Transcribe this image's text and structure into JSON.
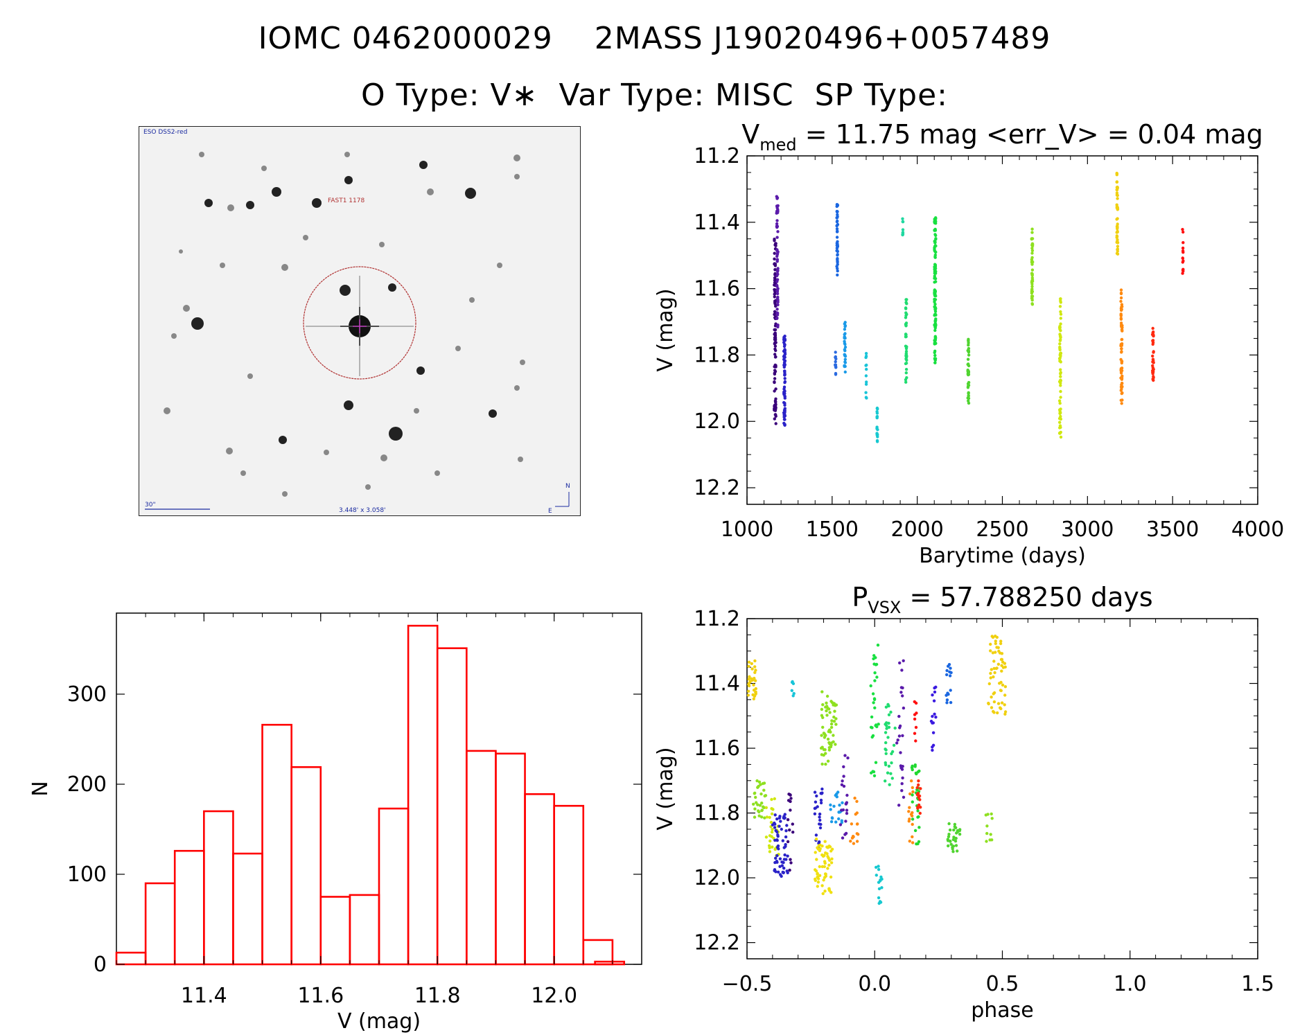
{
  "header": {
    "line1": "IOMC 0462000029    2MASS J19020496+0057489",
    "line2": "O Type: V∗  Var Type: MISC  SP Type:"
  },
  "finder": {
    "survey_label": "ESO DSS2-red",
    "target_label": "FAST1 1178",
    "scale_label": "30\"",
    "fov_label": "3.448' x 3.058'",
    "north_label": "N",
    "east_label": "E"
  },
  "colors": {
    "histogram": "#ff0000",
    "circle": "#b03030",
    "finder_text_blue": "#1a2aa0"
  },
  "chart_data": [
    {
      "id": "light_curve",
      "type": "scatter",
      "title_main": "V",
      "title_sub": "med",
      "title_rest": " = 11.75 mag <err_V> = 0.04 mag",
      "xlabel": "Barytime (days)",
      "ylabel": "V (mag)",
      "xlim": [
        1000,
        4000
      ],
      "ylim": [
        12.25,
        11.2
      ],
      "xticks": [
        1000,
        1500,
        2000,
        2500,
        3000,
        3500,
        4000
      ],
      "yticks": [
        11.2,
        11.4,
        11.6,
        11.8,
        12.0,
        12.2
      ],
      "ytick_labels": [
        "11.2",
        "11.4",
        "11.6",
        "11.8",
        "12.0",
        "12.2"
      ],
      "series": [
        {
          "x": 1165,
          "w": 10,
          "ymin": 11.45,
          "ymax": 12.01,
          "color": "#3a007a",
          "n": 110
        },
        {
          "x": 1178,
          "w": 8,
          "ymin": 11.32,
          "ymax": 11.72,
          "color": "#5a1aaa",
          "n": 60
        },
        {
          "x": 1220,
          "w": 8,
          "ymin": 11.74,
          "ymax": 12.02,
          "color": "#2a22c8",
          "n": 70
        },
        {
          "x": 1530,
          "w": 6,
          "ymin": 11.34,
          "ymax": 11.57,
          "color": "#1a66e0",
          "n": 45
        },
        {
          "x": 1520,
          "w": 5,
          "ymin": 11.79,
          "ymax": 11.86,
          "color": "#2a6ae0",
          "n": 12
        },
        {
          "x": 1575,
          "w": 6,
          "ymin": 11.7,
          "ymax": 11.86,
          "color": "#1a9ae8",
          "n": 30
        },
        {
          "x": 1700,
          "w": 4,
          "ymin": 11.78,
          "ymax": 11.93,
          "color": "#18c4d8",
          "n": 12
        },
        {
          "x": 1765,
          "w": 4,
          "ymin": 11.96,
          "ymax": 12.08,
          "color": "#16c8d0",
          "n": 18
        },
        {
          "x": 1915,
          "w": 4,
          "ymin": 11.37,
          "ymax": 11.44,
          "color": "#20d8a0",
          "n": 10
        },
        {
          "x": 1935,
          "w": 6,
          "ymin": 11.63,
          "ymax": 11.89,
          "color": "#20dc70",
          "n": 40
        },
        {
          "x": 2105,
          "w": 8,
          "ymin": 11.38,
          "ymax": 11.83,
          "color": "#18e040",
          "n": 120
        },
        {
          "x": 2300,
          "w": 6,
          "ymin": 11.75,
          "ymax": 11.95,
          "color": "#50d430",
          "n": 40
        },
        {
          "x": 2675,
          "w": 6,
          "ymin": 11.42,
          "ymax": 11.65,
          "color": "#8ee020",
          "n": 45
        },
        {
          "x": 2840,
          "w": 8,
          "ymin": 11.63,
          "ymax": 12.05,
          "color": "#d0e810",
          "n": 70
        },
        {
          "x": 3175,
          "w": 6,
          "ymin": 11.25,
          "ymax": 11.5,
          "color": "#f0d010",
          "n": 50
        },
        {
          "x": 3200,
          "w": 8,
          "ymin": 11.6,
          "ymax": 11.95,
          "color": "#ff8a10",
          "n": 60
        },
        {
          "x": 3385,
          "w": 8,
          "ymin": 11.7,
          "ymax": 11.88,
          "color": "#ff2a10",
          "n": 35
        },
        {
          "x": 3560,
          "w": 4,
          "ymin": 11.41,
          "ymax": 11.56,
          "color": "#ff1010",
          "n": 14
        }
      ]
    },
    {
      "id": "phased",
      "type": "scatter",
      "title_main": "P",
      "title_sub": "VSX",
      "title_rest": " = 57.788250 days",
      "xlabel": "phase",
      "ylabel": "V (mag)",
      "xlim": [
        -0.5,
        1.5
      ],
      "ylim": [
        12.25,
        11.2
      ],
      "xticks": [
        -0.5,
        0.0,
        0.5,
        1.0,
        1.5
      ],
      "xtick_labels": [
        "−0.5",
        "0.0",
        "0.5",
        "1.0",
        "1.5"
      ],
      "yticks": [
        11.2,
        11.4,
        11.6,
        11.8,
        12.0,
        12.2
      ],
      "ytick_labels": [
        "11.2",
        "11.4",
        "11.6",
        "11.8",
        "12.0",
        "12.2"
      ],
      "series": [
        {
          "x": -0.48,
          "w": 0.03,
          "ymin": 11.33,
          "ymax": 11.45,
          "color": "#f0d010",
          "n": 30
        },
        {
          "x": -0.45,
          "w": 0.05,
          "ymin": 11.7,
          "ymax": 11.82,
          "color": "#8ee020",
          "n": 30
        },
        {
          "x": -0.4,
          "w": 0.05,
          "ymin": 11.75,
          "ymax": 11.95,
          "color": "#d0e810",
          "n": 30
        },
        {
          "x": -0.37,
          "w": 0.06,
          "ymin": 11.8,
          "ymax": 12.0,
          "color": "#2a22c8",
          "n": 60
        },
        {
          "x": -0.33,
          "w": 0.02,
          "ymin": 11.72,
          "ymax": 12.01,
          "color": "#3a007a",
          "n": 15
        },
        {
          "x": -0.32,
          "w": 0.01,
          "ymin": 11.39,
          "ymax": 11.44,
          "color": "#18c4d8",
          "n": 6
        },
        {
          "x": -0.22,
          "w": 0.03,
          "ymin": 11.72,
          "ymax": 11.92,
          "color": "#2a22c8",
          "n": 25
        },
        {
          "x": -0.2,
          "w": 0.07,
          "ymin": 11.88,
          "ymax": 12.05,
          "color": "#f0e010",
          "n": 60
        },
        {
          "x": -0.18,
          "w": 0.06,
          "ymin": 11.42,
          "ymax": 11.65,
          "color": "#8ee020",
          "n": 60
        },
        {
          "x": -0.15,
          "w": 0.05,
          "ymin": 11.73,
          "ymax": 11.83,
          "color": "#1a9ae8",
          "n": 20
        },
        {
          "x": -0.12,
          "w": 0.03,
          "ymin": 11.6,
          "ymax": 11.88,
          "color": "#5a1aaa",
          "n": 20
        },
        {
          "x": -0.08,
          "w": 0.03,
          "ymin": 11.75,
          "ymax": 11.9,
          "color": "#ff8a10",
          "n": 15
        },
        {
          "x": 0.0,
          "w": 0.03,
          "ymin": 11.28,
          "ymax": 11.72,
          "color": "#18e040",
          "n": 30
        },
        {
          "x": 0.02,
          "w": 0.03,
          "ymin": 11.96,
          "ymax": 12.08,
          "color": "#16c8d0",
          "n": 15
        },
        {
          "x": 0.06,
          "w": 0.04,
          "ymin": 11.45,
          "ymax": 11.72,
          "color": "#20dc70",
          "n": 30
        },
        {
          "x": 0.1,
          "w": 0.03,
          "ymin": 11.33,
          "ymax": 11.8,
          "color": "#5a1aaa",
          "n": 25
        },
        {
          "x": 0.14,
          "w": 0.02,
          "ymin": 11.7,
          "ymax": 11.9,
          "color": "#ff8a10",
          "n": 15
        },
        {
          "x": 0.16,
          "w": 0.03,
          "ymin": 11.65,
          "ymax": 11.9,
          "color": "#20d830",
          "n": 30
        },
        {
          "x": 0.16,
          "w": 0.01,
          "ymin": 11.45,
          "ymax": 11.6,
          "color": "#ff1010",
          "n": 8
        },
        {
          "x": 0.17,
          "w": 0.02,
          "ymin": 11.7,
          "ymax": 11.82,
          "color": "#ff2a10",
          "n": 15
        },
        {
          "x": 0.23,
          "w": 0.02,
          "ymin": 11.4,
          "ymax": 11.62,
          "color": "#3a1ae0",
          "n": 15
        },
        {
          "x": 0.29,
          "w": 0.02,
          "ymin": 11.34,
          "ymax": 11.46,
          "color": "#1a66e0",
          "n": 15
        },
        {
          "x": 0.31,
          "w": 0.05,
          "ymin": 11.83,
          "ymax": 11.92,
          "color": "#50d430",
          "n": 30
        },
        {
          "x": 0.45,
          "w": 0.03,
          "ymin": 11.8,
          "ymax": 11.9,
          "color": "#8ee020",
          "n": 10
        },
        {
          "x": 0.48,
          "w": 0.07,
          "ymin": 11.25,
          "ymax": 11.5,
          "color": "#f0d010",
          "n": 60
        }
      ]
    },
    {
      "id": "histogram",
      "type": "bar",
      "xlabel": "V (mag)",
      "ylabel": "N",
      "xlim": [
        1125,
        1215
      ],
      "xscale_divisor": 100,
      "ylim": [
        0,
        390
      ],
      "bin_width": 5,
      "bin_starts": [
        1125,
        1130,
        1135,
        1140,
        1145,
        1150,
        1155,
        1160,
        1165,
        1170,
        1175,
        1180,
        1185,
        1190,
        1195,
        1200,
        1205
      ],
      "values": [
        13,
        90,
        126,
        170,
        123,
        266,
        219,
        75,
        77,
        173,
        376,
        351,
        237,
        234,
        189,
        176,
        27
      ],
      "last_bin": {
        "start": 1207,
        "end": 1212,
        "value": 3
      },
      "xticks": [
        1140,
        1160,
        1180,
        1200
      ],
      "xtick_labels": [
        "11.4",
        "11.6",
        "11.8",
        "12.0"
      ],
      "yticks": [
        0,
        100,
        200,
        300
      ],
      "ytick_labels": [
        "0",
        "100",
        "200",
        "300"
      ]
    }
  ]
}
